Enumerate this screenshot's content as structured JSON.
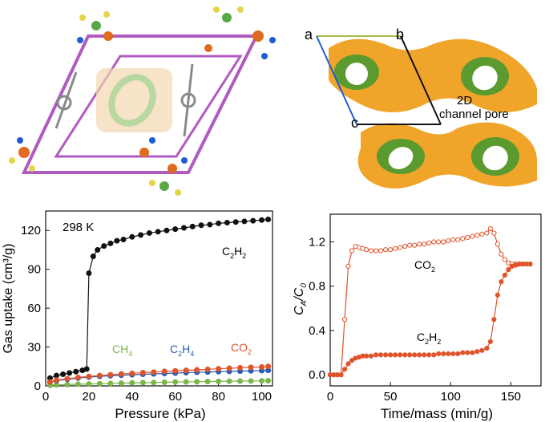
{
  "structure_panel": {
    "atoms_colors": {
      "bond": "#b05bbf",
      "metal": "#e06a1e",
      "halide": "#e5d44a",
      "nitrogen": "#1f5bd6",
      "carbon": "#8a8a8a",
      "green": "#58a845"
    }
  },
  "pore_panel": {
    "axis_a": "a",
    "axis_b": "b",
    "axis_c": "c",
    "pore_label_line1": "2D",
    "pore_label_line2": "channel pore",
    "colors": {
      "surface": "#f0a52a",
      "inner": "#5a9a2e"
    }
  },
  "chart_data": [
    {
      "type": "line",
      "xlabel": "Pressure (kPa)",
      "ylabel": "Gas uptake (cm³/g)",
      "xlim": [
        0,
        105
      ],
      "ylim": [
        0,
        135
      ],
      "xticks": [
        "0",
        "20",
        "40",
        "60",
        "80",
        "100"
      ],
      "yticks": [
        "0",
        "30",
        "60",
        "90",
        "120"
      ],
      "annotation": "298 K",
      "series": [
        {
          "name": "C2H2",
          "label_main": "C",
          "label_sub1": "2",
          "label_mid": "H",
          "label_sub2": "2",
          "color": "#111111",
          "x": [
            2,
            5,
            8,
            11,
            14,
            17,
            19,
            20,
            22,
            24,
            27,
            30,
            33,
            36,
            40,
            44,
            48,
            52,
            56,
            60,
            64,
            68,
            72,
            76,
            80,
            84,
            88,
            92,
            96,
            100,
            103
          ],
          "y": [
            6,
            8,
            9,
            10,
            11,
            12,
            13,
            87,
            100,
            105,
            108,
            110,
            112,
            113,
            115,
            116.5,
            118,
            119,
            120,
            121,
            122,
            123,
            124,
            124.5,
            125.5,
            126,
            126.5,
            127,
            127.5,
            128,
            128.5
          ]
        },
        {
          "name": "CH4",
          "label_main": "CH",
          "label_sub1": "4",
          "label_mid": "",
          "label_sub2": "",
          "color": "#7ab648",
          "x": [
            2,
            5,
            10,
            15,
            20,
            25,
            30,
            35,
            40,
            45,
            50,
            55,
            60,
            65,
            70,
            75,
            80,
            85,
            90,
            95,
            100,
            103
          ],
          "y": [
            0.5,
            0.8,
            1.0,
            1.3,
            1.5,
            1.7,
            1.9,
            2.1,
            2.3,
            2.5,
            2.6,
            2.8,
            3.0,
            3.1,
            3.2,
            3.4,
            3.5,
            3.6,
            3.7,
            3.8,
            3.9,
            4.0
          ]
        },
        {
          "name": "C2H4",
          "label_main": "C",
          "label_sub1": "2",
          "label_mid": "H",
          "label_sub2": "4",
          "color": "#2a5db0",
          "x": [
            2,
            5,
            10,
            15,
            20,
            25,
            30,
            35,
            40,
            45,
            50,
            55,
            60,
            65,
            70,
            75,
            80,
            85,
            90,
            95,
            100,
            103
          ],
          "y": [
            3,
            4,
            5,
            6,
            6.8,
            7.3,
            7.8,
            8.2,
            8.6,
            9,
            9.3,
            9.6,
            9.9,
            10.2,
            10.5,
            10.7,
            11,
            11.2,
            11.4,
            11.6,
            11.8,
            12
          ]
        },
        {
          "name": "CO2",
          "label_main": "CO",
          "label_sub1": "2",
          "label_mid": "",
          "label_sub2": "",
          "color": "#e0542c",
          "x": [
            2,
            5,
            10,
            15,
            20,
            25,
            30,
            35,
            40,
            45,
            50,
            55,
            60,
            65,
            70,
            75,
            80,
            85,
            90,
            95,
            100,
            103
          ],
          "y": [
            3,
            4.5,
            5.5,
            6.5,
            7.3,
            8,
            8.6,
            9.2,
            9.7,
            10.2,
            10.7,
            11.2,
            11.6,
            12,
            12.4,
            12.8,
            13.2,
            13.6,
            14,
            14.3,
            14.6,
            15
          ]
        }
      ]
    },
    {
      "type": "line",
      "xlabel": "Time/mass (min/g)",
      "ylabel_parts": {
        "a": "C",
        "a_sub": "A",
        "sep": "/",
        "b": "C",
        "b_sub": "0"
      },
      "xlim": [
        0,
        175
      ],
      "ylim": [
        -0.1,
        1.45
      ],
      "xticks": [
        "0",
        "50",
        "100",
        "150"
      ],
      "yticks": [
        "0.0",
        "0.4",
        "0.8",
        "1.2"
      ],
      "series": [
        {
          "name": "CO2",
          "label_main": "CO",
          "label_sub1": "2",
          "label_mid": "",
          "label_sub2": "",
          "color": "#e0542c",
          "marker": "open",
          "x": [
            0,
            3,
            6,
            9,
            12,
            15,
            18,
            21,
            24,
            27,
            30,
            34,
            38,
            42,
            46,
            50,
            54,
            58,
            62,
            66,
            70,
            74,
            78,
            82,
            86,
            90,
            94,
            98,
            102,
            106,
            110,
            114,
            118,
            122,
            126,
            130,
            133,
            136,
            139,
            142,
            145,
            148,
            151,
            154,
            157,
            160,
            163,
            166
          ],
          "y": [
            0,
            0,
            0,
            0,
            0.5,
            0.98,
            1.12,
            1.16,
            1.15,
            1.14,
            1.13,
            1.12,
            1.12,
            1.12,
            1.13,
            1.13,
            1.14,
            1.15,
            1.16,
            1.17,
            1.17,
            1.18,
            1.18,
            1.19,
            1.2,
            1.2,
            1.2,
            1.21,
            1.22,
            1.22,
            1.23,
            1.24,
            1.25,
            1.26,
            1.27,
            1.28,
            1.32,
            1.28,
            1.18,
            1.09,
            1.04,
            1.01,
            1.0,
            1.0,
            1.0,
            1.0,
            1.0,
            1.0
          ]
        },
        {
          "name": "C2H2",
          "label_main": "C",
          "label_sub1": "2",
          "label_mid": "H",
          "label_sub2": "2",
          "color": "#e0542c",
          "marker": "filled",
          "x": [
            0,
            3,
            6,
            9,
            12,
            15,
            18,
            21,
            24,
            27,
            30,
            34,
            38,
            42,
            46,
            50,
            54,
            58,
            62,
            66,
            70,
            74,
            78,
            82,
            86,
            90,
            94,
            98,
            102,
            106,
            110,
            114,
            118,
            122,
            126,
            130,
            133,
            136,
            139,
            142,
            145,
            148,
            151,
            154,
            157,
            160,
            163,
            166
          ],
          "y": [
            0,
            0,
            0,
            0,
            0.05,
            0.1,
            0.13,
            0.15,
            0.16,
            0.17,
            0.17,
            0.17,
            0.18,
            0.18,
            0.18,
            0.18,
            0.18,
            0.18,
            0.18,
            0.18,
            0.18,
            0.18,
            0.18,
            0.18,
            0.18,
            0.19,
            0.19,
            0.19,
            0.19,
            0.19,
            0.2,
            0.2,
            0.2,
            0.21,
            0.22,
            0.24,
            0.3,
            0.5,
            0.72,
            0.84,
            0.9,
            0.95,
            0.98,
            0.99,
            1.0,
            1.0,
            1.0,
            1.0
          ]
        }
      ]
    }
  ]
}
